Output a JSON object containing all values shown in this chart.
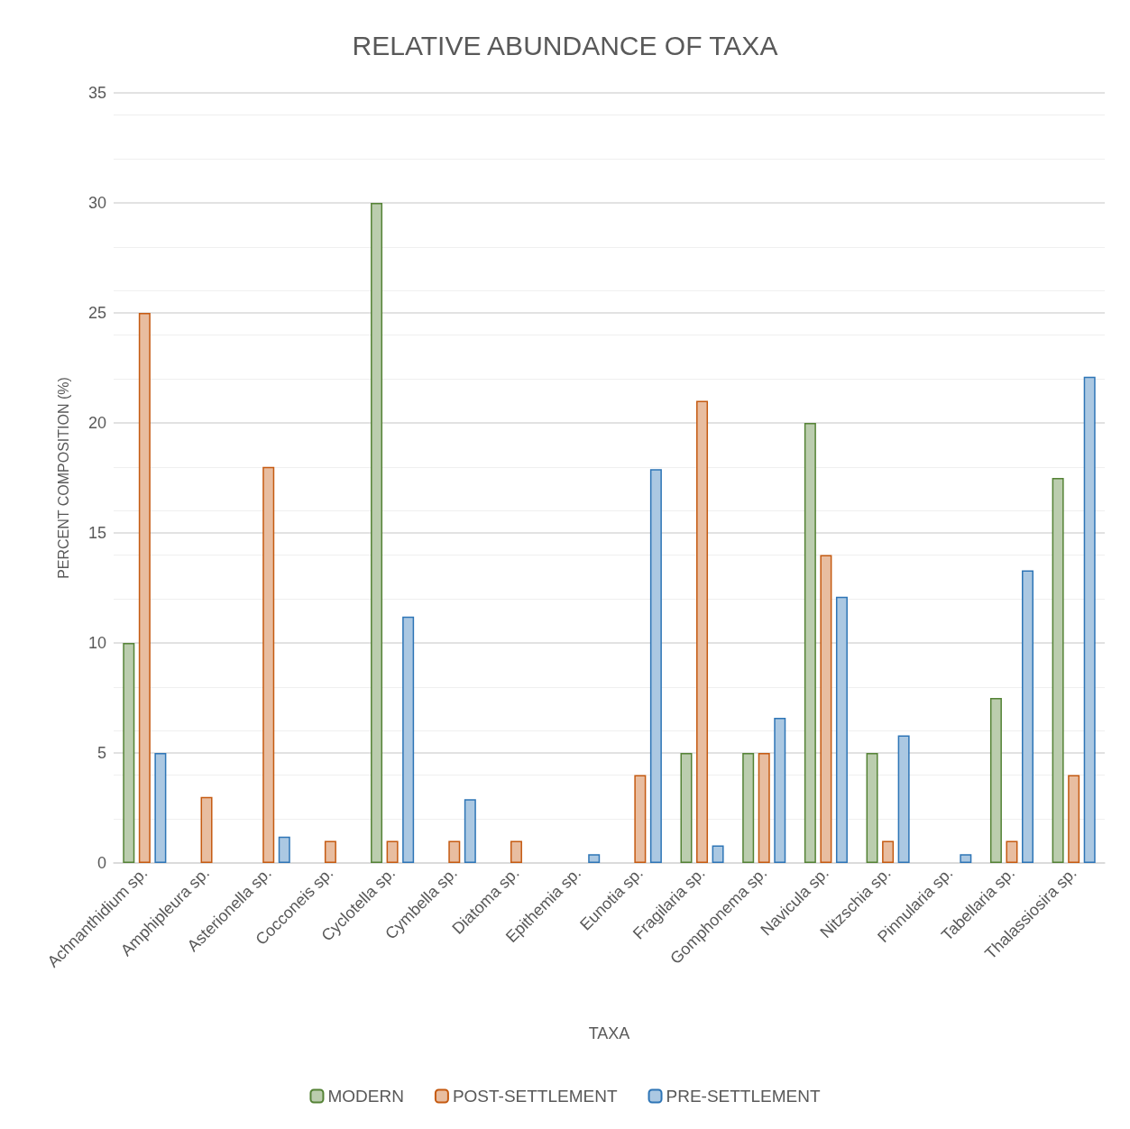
{
  "chart_data": {
    "type": "bar",
    "title": "RELATIVE ABUNDANCE OF TAXA",
    "xlabel": "TAXA",
    "ylabel": "PERCENT COMPOSITION (%)",
    "categories": [
      "Achnanthidium sp.",
      "Amphipleura sp.",
      "Asterionella sp.",
      "Cocconeis sp.",
      "Cyclotella sp.",
      "Cymbella sp.",
      "Diatoma sp.",
      "Epithemia sp.",
      "Eunotia sp.",
      "Fragilaria sp.",
      "Gomphonema sp.",
      "Navicula sp.",
      "Nitzschia sp.",
      "Pinnularia sp.",
      "Tabellaria sp.",
      "Thalassiosira sp."
    ],
    "series": [
      {
        "name": "MODERN",
        "color": "#548235",
        "values": [
          10,
          null,
          null,
          null,
          30,
          null,
          null,
          null,
          null,
          5,
          5,
          20,
          5,
          null,
          7.5,
          17.5
        ]
      },
      {
        "name": "POST-SETTLEMENT",
        "color": "#c55a11",
        "values": [
          25,
          3,
          18,
          1,
          1,
          1,
          1,
          null,
          4,
          21,
          5,
          14,
          1,
          null,
          1,
          4
        ]
      },
      {
        "name": "PRE-SETTLEMENT",
        "color": "#2e75b6",
        "values": [
          5,
          null,
          1.2,
          null,
          11.2,
          2.9,
          null,
          0.4,
          17.9,
          0.8,
          6.6,
          12.1,
          5.8,
          0.4,
          13.3,
          22.1
        ]
      }
    ],
    "ylim": [
      0,
      35
    ],
    "yticks": [
      0,
      5,
      10,
      15,
      20,
      25,
      30,
      35
    ],
    "grid": "y",
    "legend": "bottom"
  }
}
